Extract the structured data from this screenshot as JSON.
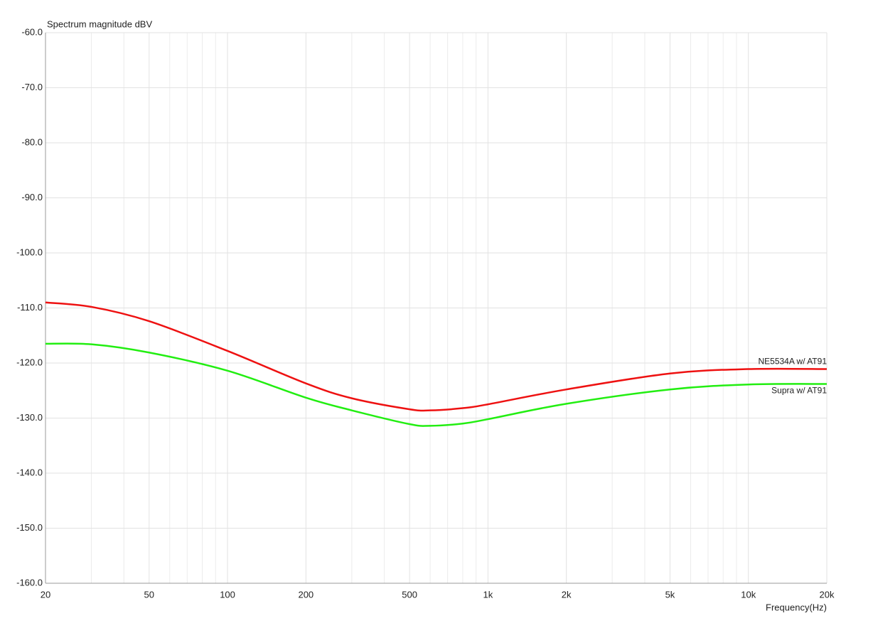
{
  "chart_data": {
    "type": "line",
    "title": "Spectrum magnitude dBV",
    "x_label": "Frequency(Hz)",
    "log_x": true,
    "grid": true,
    "x": [
      20,
      30,
      50,
      100,
      200,
      300,
      500,
      600,
      800,
      1000,
      2000,
      5000,
      10000,
      20000
    ],
    "series": [
      {
        "name": "NE5534A w/ AT91",
        "color": "#ee1111",
        "values": [
          -109,
          -109.8,
          -112.4,
          -117.8,
          -123.7,
          -126.4,
          -128.4,
          -128.6,
          -128.2,
          -127.5,
          -124.8,
          -121.9,
          -121.1,
          -121.1
        ]
      },
      {
        "name": "Supra w/ AT91",
        "color": "#22ee11",
        "values": [
          -116.5,
          -116.6,
          -118.1,
          -121.4,
          -126.3,
          -128.6,
          -131.1,
          -131.4,
          -131.0,
          -130.2,
          -127.4,
          -124.8,
          -123.9,
          -123.8
        ]
      }
    ],
    "xlim": [
      20,
      20000
    ],
    "xticks": [
      20,
      50,
      100,
      200,
      500,
      {
        "value": 1000,
        "label": "1k"
      },
      {
        "value": 2000,
        "label": "2k"
      },
      {
        "value": 5000,
        "label": "5k"
      },
      {
        "value": 10000,
        "label": "10k"
      },
      {
        "value": 20000,
        "label": "20k"
      }
    ],
    "xminorticks": [
      30,
      40,
      60,
      70,
      80,
      90,
      300,
      400,
      600,
      700,
      800,
      900,
      3000,
      4000,
      6000,
      7000,
      8000,
      9000
    ],
    "ylim": [
      -160,
      -60
    ],
    "yticks": [
      {
        "value": -60,
        "label": "-60.0"
      },
      {
        "value": -70,
        "label": "-70.0"
      },
      {
        "value": -80,
        "label": "-80.0"
      },
      {
        "value": -90,
        "label": "-90.0"
      },
      {
        "value": -100,
        "label": "-100.0"
      },
      {
        "value": -110,
        "label": "-110.0"
      },
      {
        "value": -120,
        "label": "-120.0"
      },
      {
        "value": -130,
        "label": "-130.0"
      },
      {
        "value": -140,
        "label": "-140.0"
      },
      {
        "value": -150,
        "label": "-150.0"
      },
      {
        "value": -160,
        "label": "-160.0"
      }
    ]
  }
}
